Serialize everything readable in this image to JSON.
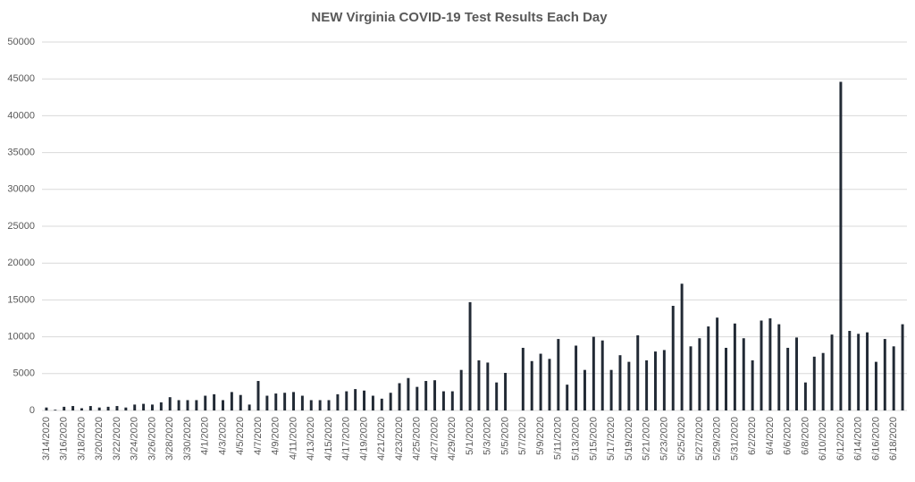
{
  "chart_data": {
    "type": "bar",
    "title": "NEW Virginia COVID-19 Test Results Each Day",
    "categories": [
      "3/14/2020",
      null,
      "3/16/2020",
      null,
      "3/18/2020",
      null,
      "3/20/2020",
      null,
      "3/22/2020",
      null,
      "3/24/2020",
      null,
      "3/26/2020",
      null,
      "3/28/2020",
      null,
      "3/30/2020",
      null,
      "4/1/2020",
      null,
      "4/3/2020",
      null,
      "4/5/2020",
      null,
      "4/7/2020",
      null,
      "4/9/2020",
      null,
      "4/11/2020",
      null,
      "4/13/2020",
      null,
      "4/15/2020",
      null,
      "4/17/2020",
      null,
      "4/19/2020",
      null,
      "4/21/2020",
      null,
      "4/23/2020",
      null,
      "4/25/2020",
      null,
      "4/27/2020",
      null,
      "4/29/2020",
      null,
      "5/1/2020",
      null,
      "5/3/2020",
      null,
      "5/5/2020",
      null,
      "5/7/2020",
      null,
      "5/9/2020",
      null,
      "5/11/2020",
      null,
      "5/13/2020",
      null,
      "5/15/2020",
      null,
      "5/17/2020",
      null,
      "5/19/2020",
      null,
      "5/21/2020",
      null,
      "5/23/2020",
      null,
      "5/25/2020",
      null,
      "5/27/2020",
      null,
      "5/29/2020",
      null,
      "5/31/2020",
      null,
      "6/2/2020",
      null,
      "6/4/2020",
      null,
      "6/6/2020",
      null,
      "6/8/2020",
      null,
      "6/10/2020",
      null,
      "6/12/2020",
      null,
      "6/14/2020",
      null,
      "6/16/2020",
      null,
      "6/18/2020",
      null
    ],
    "values": [
      400,
      100,
      500,
      600,
      300,
      600,
      400,
      500,
      600,
      400,
      800,
      900,
      800,
      1100,
      1800,
      1400,
      1400,
      1400,
      2000,
      2200,
      1400,
      2500,
      2100,
      800,
      4000,
      2000,
      2300,
      2400,
      2500,
      2000,
      1400,
      1400,
      1400,
      2200,
      2600,
      2900,
      2700,
      2000,
      1600,
      2400,
      3700,
      4400,
      3200,
      4000,
      4100,
      2600,
      2600,
      5500,
      14700,
      6800,
      6500,
      3800,
      5100,
      0,
      8500,
      6700,
      7700,
      7000,
      9700,
      3500,
      8800,
      5500,
      10000,
      9500,
      5500,
      7500,
      6600,
      10200,
      6800,
      8000,
      8200,
      14200,
      17200,
      8700,
      9800,
      11400,
      12600,
      8500,
      11800,
      9800,
      6800,
      12200,
      12500,
      11700,
      8500,
      9900,
      3800,
      7300,
      7800,
      10300,
      44600,
      10800,
      10400,
      10600,
      6600,
      9700,
      8700,
      11700
    ],
    "color": "#222a35",
    "ylim": [
      0,
      50000
    ],
    "yticks": [
      0,
      5000,
      10000,
      15000,
      20000,
      25000,
      30000,
      35000,
      40000,
      45000,
      50000
    ],
    "grid": true
  }
}
